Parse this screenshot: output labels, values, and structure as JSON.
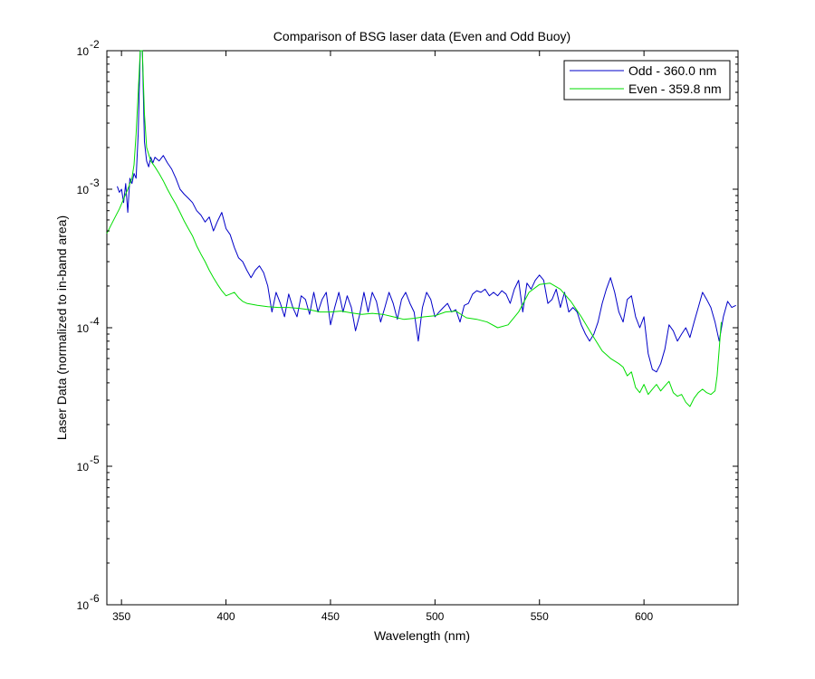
{
  "chart_data": {
    "type": "line",
    "title": "Comparison of BSG laser data (Even and Odd Buoy)",
    "xlabel": "Wavelength (nm)",
    "ylabel": "Laser Data (normalized to in-band area)",
    "xlim": [
      343,
      645
    ],
    "ylim": [
      1e-06,
      0.01
    ],
    "yscale": "log",
    "xticks": [
      350,
      400,
      450,
      500,
      550,
      600
    ],
    "xtick_labels": [
      "350",
      "400",
      "450",
      "500",
      "550",
      "600"
    ],
    "yticks": [
      1e-06,
      1e-05,
      0.0001,
      0.001,
      0.01
    ],
    "ytick_labels": [
      {
        "base": "10",
        "exp": "-6"
      },
      {
        "base": "10",
        "exp": "-5"
      },
      {
        "base": "10",
        "exp": "-4"
      },
      {
        "base": "10",
        "exp": "-3"
      },
      {
        "base": "10",
        "exp": "-2"
      }
    ],
    "grid": false,
    "legend_position": "top-right",
    "series": [
      {
        "name": "Odd - 360.0 nm",
        "color": "#0000c8",
        "points": [
          [
            348,
            0.00105
          ],
          [
            349,
            0.00095
          ],
          [
            350,
            0.001
          ],
          [
            351,
            0.0008
          ],
          [
            352,
            0.0011
          ],
          [
            353,
            0.00068
          ],
          [
            354,
            0.0012
          ],
          [
            355,
            0.0011
          ],
          [
            356,
            0.0013
          ],
          [
            357,
            0.0012
          ],
          [
            358,
            0.0025
          ],
          [
            359,
            0.01
          ],
          [
            360,
            0.01
          ],
          [
            361,
            0.0022
          ],
          [
            362,
            0.0016
          ],
          [
            363,
            0.00145
          ],
          [
            364,
            0.0017
          ],
          [
            365,
            0.00155
          ],
          [
            366,
            0.0017
          ],
          [
            368,
            0.0016
          ],
          [
            370,
            0.00175
          ],
          [
            372,
            0.00155
          ],
          [
            374,
            0.0014
          ],
          [
            376,
            0.0012
          ],
          [
            378,
            0.001
          ],
          [
            380,
            0.00092
          ],
          [
            382,
            0.00086
          ],
          [
            384,
            0.0008
          ],
          [
            386,
            0.0007
          ],
          [
            388,
            0.00065
          ],
          [
            390,
            0.00058
          ],
          [
            392,
            0.00063
          ],
          [
            394,
            0.0005
          ],
          [
            396,
            0.00059
          ],
          [
            398,
            0.00068
          ],
          [
            400,
            0.00052
          ],
          [
            402,
            0.00047
          ],
          [
            404,
            0.00038
          ],
          [
            406,
            0.00032
          ],
          [
            408,
            0.0003
          ],
          [
            410,
            0.00026
          ],
          [
            412,
            0.00023
          ],
          [
            414,
            0.00026
          ],
          [
            416,
            0.00028
          ],
          [
            418,
            0.00025
          ],
          [
            420,
            0.0002
          ],
          [
            422,
            0.00013
          ],
          [
            424,
            0.00018
          ],
          [
            426,
            0.00015
          ],
          [
            428,
            0.00012
          ],
          [
            430,
            0.000175
          ],
          [
            432,
            0.00014
          ],
          [
            434,
            0.00012
          ],
          [
            436,
            0.00017
          ],
          [
            438,
            0.00016
          ],
          [
            440,
            0.000125
          ],
          [
            442,
            0.00018
          ],
          [
            444,
            0.00013
          ],
          [
            446,
            0.00016
          ],
          [
            448,
            0.00018
          ],
          [
            450,
            0.000105
          ],
          [
            452,
            0.00014
          ],
          [
            454,
            0.00018
          ],
          [
            456,
            0.00013
          ],
          [
            458,
            0.00017
          ],
          [
            460,
            0.00014
          ],
          [
            462,
            9.5e-05
          ],
          [
            464,
            0.000125
          ],
          [
            466,
            0.00018
          ],
          [
            468,
            0.00013
          ],
          [
            470,
            0.00018
          ],
          [
            472,
            0.000155
          ],
          [
            474,
            0.00011
          ],
          [
            476,
            0.00014
          ],
          [
            478,
            0.00018
          ],
          [
            480,
            0.00015
          ],
          [
            482,
            0.000115
          ],
          [
            484,
            0.00016
          ],
          [
            486,
            0.00018
          ],
          [
            488,
            0.00015
          ],
          [
            490,
            0.00013
          ],
          [
            492,
            8e-05
          ],
          [
            494,
            0.00014
          ],
          [
            496,
            0.00018
          ],
          [
            498,
            0.00016
          ],
          [
            500,
            0.00012
          ],
          [
            502,
            0.00013
          ],
          [
            504,
            0.00014
          ],
          [
            506,
            0.00015
          ],
          [
            508,
            0.00013
          ],
          [
            510,
            0.000135
          ],
          [
            512,
            0.00011
          ],
          [
            514,
            0.000145
          ],
          [
            516,
            0.00015
          ],
          [
            518,
            0.000175
          ],
          [
            520,
            0.000185
          ],
          [
            522,
            0.00018
          ],
          [
            524,
            0.00019
          ],
          [
            526,
            0.00017
          ],
          [
            528,
            0.00018
          ],
          [
            530,
            0.00017
          ],
          [
            532,
            0.000185
          ],
          [
            534,
            0.000175
          ],
          [
            536,
            0.00015
          ],
          [
            538,
            0.00019
          ],
          [
            540,
            0.00022
          ],
          [
            542,
            0.00013
          ],
          [
            544,
            0.00021
          ],
          [
            546,
            0.00019
          ],
          [
            548,
            0.00022
          ],
          [
            550,
            0.00024
          ],
          [
            552,
            0.00022
          ],
          [
            554,
            0.00015
          ],
          [
            556,
            0.00016
          ],
          [
            558,
            0.00019
          ],
          [
            560,
            0.00014
          ],
          [
            562,
            0.00018
          ],
          [
            564,
            0.00013
          ],
          [
            566,
            0.00014
          ],
          [
            568,
            0.00013
          ],
          [
            570,
            0.000105
          ],
          [
            572,
            9e-05
          ],
          [
            574,
            8e-05
          ],
          [
            576,
            9e-05
          ],
          [
            578,
            0.00011
          ],
          [
            580,
            0.00015
          ],
          [
            582,
            0.00019
          ],
          [
            584,
            0.00023
          ],
          [
            586,
            0.00018
          ],
          [
            588,
            0.00013
          ],
          [
            590,
            0.00011
          ],
          [
            592,
            0.00016
          ],
          [
            594,
            0.00017
          ],
          [
            596,
            0.00012
          ],
          [
            598,
            0.0001
          ],
          [
            600,
            0.00012
          ],
          [
            602,
            6.5e-05
          ],
          [
            604,
            5e-05
          ],
          [
            606,
            4.8e-05
          ],
          [
            608,
            5.5e-05
          ],
          [
            610,
            7e-05
          ],
          [
            612,
            0.000105
          ],
          [
            614,
            9.5e-05
          ],
          [
            616,
            8e-05
          ],
          [
            618,
            9e-05
          ],
          [
            620,
            0.0001
          ],
          [
            622,
            8.5e-05
          ],
          [
            624,
            0.00011
          ],
          [
            626,
            0.00014
          ],
          [
            628,
            0.00018
          ],
          [
            630,
            0.00016
          ],
          [
            632,
            0.00014
          ],
          [
            634,
            0.00011
          ],
          [
            636,
            8e-05
          ],
          [
            638,
            0.00012
          ],
          [
            640,
            0.000155
          ],
          [
            642,
            0.00014
          ],
          [
            644,
            0.000145
          ]
        ]
      },
      {
        "name": "Even - 359.8 nm",
        "color": "#00dd00",
        "points": [
          [
            343,
            0.00048
          ],
          [
            345,
            0.00055
          ],
          [
            347,
            0.00063
          ],
          [
            349,
            0.00072
          ],
          [
            351,
            0.00085
          ],
          [
            353,
            0.001
          ],
          [
            355,
            0.0012
          ],
          [
            356,
            0.0015
          ],
          [
            357,
            0.0025
          ],
          [
            358,
            0.005
          ],
          [
            359,
            0.01
          ],
          [
            360,
            0.01
          ],
          [
            361,
            0.0035
          ],
          [
            362,
            0.002
          ],
          [
            364,
            0.0016
          ],
          [
            366,
            0.00145
          ],
          [
            368,
            0.0013
          ],
          [
            370,
            0.00115
          ],
          [
            372,
            0.001
          ],
          [
            374,
            0.00088
          ],
          [
            376,
            0.00078
          ],
          [
            378,
            0.00068
          ],
          [
            380,
            0.00059
          ],
          [
            382,
            0.00052
          ],
          [
            384,
            0.00046
          ],
          [
            386,
            0.00039
          ],
          [
            388,
            0.00034
          ],
          [
            390,
            0.0003
          ],
          [
            392,
            0.00026
          ],
          [
            394,
            0.00023
          ],
          [
            396,
            0.000205
          ],
          [
            398,
            0.000185
          ],
          [
            400,
            0.00017
          ],
          [
            402,
            0.000175
          ],
          [
            404,
            0.00018
          ],
          [
            406,
            0.000165
          ],
          [
            408,
            0.000155
          ],
          [
            410,
            0.00015
          ],
          [
            415,
            0.000145
          ],
          [
            420,
            0.000142
          ],
          [
            425,
            0.00014
          ],
          [
            430,
            0.00014
          ],
          [
            435,
            0.000138
          ],
          [
            440,
            0.000135
          ],
          [
            445,
            0.00013
          ],
          [
            450,
            0.00013
          ],
          [
            455,
            0.000132
          ],
          [
            460,
            0.000128
          ],
          [
            465,
            0.000125
          ],
          [
            470,
            0.000127
          ],
          [
            475,
            0.000125
          ],
          [
            480,
            0.00012
          ],
          [
            485,
            0.000115
          ],
          [
            490,
            0.000117
          ],
          [
            495,
            0.00012
          ],
          [
            500,
            0.000122
          ],
          [
            505,
            0.00013
          ],
          [
            510,
            0.000132
          ],
          [
            515,
            0.000118
          ],
          [
            520,
            0.000115
          ],
          [
            525,
            0.00011
          ],
          [
            530,
            0.0001
          ],
          [
            535,
            0.000105
          ],
          [
            540,
            0.00013
          ],
          [
            545,
            0.00018
          ],
          [
            550,
            0.000205
          ],
          [
            555,
            0.00021
          ],
          [
            560,
            0.00019
          ],
          [
            565,
            0.000155
          ],
          [
            570,
            0.00012
          ],
          [
            575,
            9e-05
          ],
          [
            580,
            6.8e-05
          ],
          [
            584,
            6e-05
          ],
          [
            588,
            5.5e-05
          ],
          [
            590,
            5.2e-05
          ],
          [
            592,
            4.5e-05
          ],
          [
            594,
            4.8e-05
          ],
          [
            596,
            3.7e-05
          ],
          [
            598,
            3.4e-05
          ],
          [
            600,
            3.9e-05
          ],
          [
            602,
            3.3e-05
          ],
          [
            604,
            3.6e-05
          ],
          [
            606,
            3.9e-05
          ],
          [
            608,
            3.5e-05
          ],
          [
            610,
            3.8e-05
          ],
          [
            612,
            4.1e-05
          ],
          [
            614,
            3.4e-05
          ],
          [
            616,
            3.2e-05
          ],
          [
            618,
            3.3e-05
          ],
          [
            620,
            2.9e-05
          ],
          [
            622,
            2.7e-05
          ],
          [
            624,
            3.1e-05
          ],
          [
            626,
            3.4e-05
          ],
          [
            628,
            3.6e-05
          ],
          [
            630,
            3.4e-05
          ],
          [
            632,
            3.3e-05
          ],
          [
            634,
            3.5e-05
          ],
          [
            635,
            4.5e-05
          ],
          [
            636,
            7e-05
          ],
          [
            637,
            0.00011
          ]
        ]
      }
    ]
  }
}
